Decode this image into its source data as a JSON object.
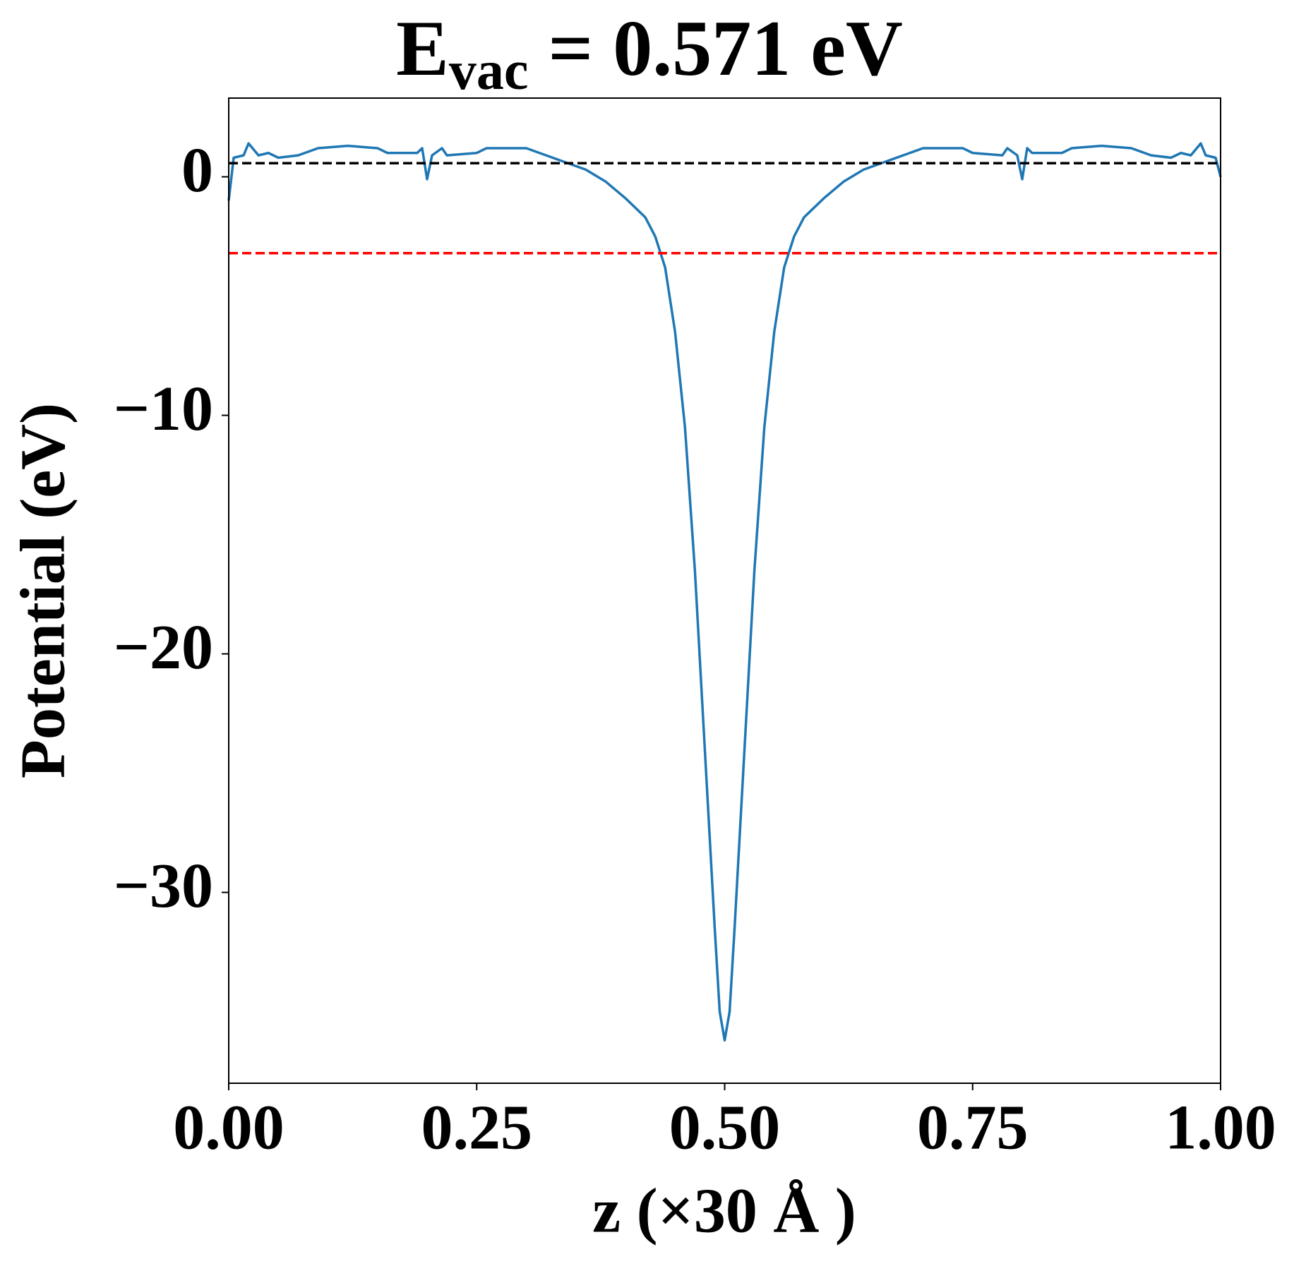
{
  "chart_data": {
    "type": "line",
    "title": {
      "main": "E",
      "subscript": "vac",
      "rest": " = 0.571 eV"
    },
    "x_label": "z (×30 Å )",
    "y_label": "Potential (eV)",
    "x": [
      0,
      0.005,
      0.015,
      0.02,
      0.03,
      0.04,
      0.05,
      0.07,
      0.09,
      0.12,
      0.15,
      0.16,
      0.19,
      0.195,
      0.2,
      0.205,
      0.215,
      0.22,
      0.25,
      0.26,
      0.3,
      0.32,
      0.34,
      0.36,
      0.38,
      0.4,
      0.42,
      0.43,
      0.44,
      0.45,
      0.46,
      0.47,
      0.48,
      0.49,
      0.495,
      0.5,
      0.505,
      0.51,
      0.52,
      0.53,
      0.54,
      0.55,
      0.56,
      0.57,
      0.58,
      0.6,
      0.62,
      0.64,
      0.66,
      0.68,
      0.7,
      0.74,
      0.75,
      0.78,
      0.785,
      0.795,
      0.8,
      0.805,
      0.81,
      0.84,
      0.85,
      0.88,
      0.91,
      0.93,
      0.95,
      0.96,
      0.97,
      0.98,
      0.985,
      0.995,
      1.0
    ],
    "series": [
      {
        "name": "potential",
        "color": "#1f77b4",
        "values": [
          -1.0,
          0.8,
          0.9,
          1.4,
          0.9,
          1.0,
          0.8,
          0.9,
          1.2,
          1.3,
          1.2,
          1.0,
          1.0,
          1.2,
          -0.1,
          0.9,
          1.2,
          0.9,
          1.0,
          1.2,
          1.2,
          0.9,
          0.6,
          0.3,
          -0.2,
          -0.9,
          -1.7,
          -2.5,
          -3.8,
          -6.5,
          -10.5,
          -16.5,
          -24,
          -31.5,
          -35,
          -36.2,
          -35,
          -31.5,
          -24,
          -16.5,
          -10.5,
          -6.5,
          -3.8,
          -2.5,
          -1.7,
          -0.9,
          -0.2,
          0.3,
          0.6,
          0.9,
          1.2,
          1.2,
          1.0,
          0.9,
          1.2,
          0.9,
          -0.1,
          1.2,
          1.0,
          1.0,
          1.2,
          1.3,
          1.2,
          0.9,
          0.8,
          1.0,
          0.9,
          1.4,
          0.9,
          0.8,
          0.0
        ]
      }
    ],
    "hlines": [
      {
        "y": 0.571,
        "color": "#000000"
      },
      {
        "y": -3.2,
        "color": "#ff0000"
      }
    ],
    "xlim": [
      0,
      1
    ],
    "ylim": [
      -38.0,
      3.3
    ],
    "xticks": [
      {
        "value": 0,
        "label": "0.00"
      },
      {
        "value": 0.25,
        "label": "0.25"
      },
      {
        "value": 0.5,
        "label": "0.50"
      },
      {
        "value": 0.75,
        "label": "0.75"
      },
      {
        "value": 1,
        "label": "1.00"
      }
    ],
    "yticks": [
      {
        "value": -30,
        "label": "−30"
      },
      {
        "value": -20,
        "label": "−20"
      },
      {
        "value": -10,
        "label": "−10"
      },
      0
    ]
  }
}
